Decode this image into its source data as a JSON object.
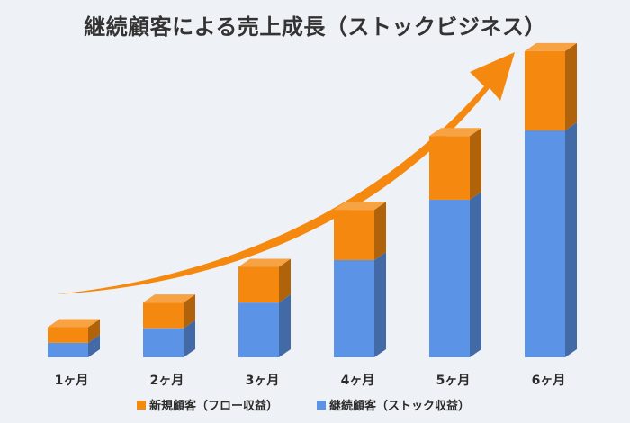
{
  "chart_data": {
    "type": "bar",
    "stacked": true,
    "title": "継続顧客による売上成長（ストックビジネス）",
    "categories": [
      "1ヶ月",
      "2ヶ月",
      "3ヶ月",
      "4ヶ月",
      "5ヶ月",
      "6ヶ月"
    ],
    "series": [
      {
        "name": "継続顧客（ストック収益）",
        "color": "#5b93e6",
        "values": [
          13,
          26,
          49,
          87,
          141,
          203
        ]
      },
      {
        "name": "新規顧客（フロー収益）",
        "color": "#f5890f",
        "values": [
          14,
          23,
          32,
          45,
          57,
          71
        ]
      }
    ],
    "ylim": [
      0,
      290
    ],
    "grid": false,
    "legend": "bottom",
    "trend_arrow": {
      "color": "#f5890f",
      "direction": "up-right"
    }
  }
}
